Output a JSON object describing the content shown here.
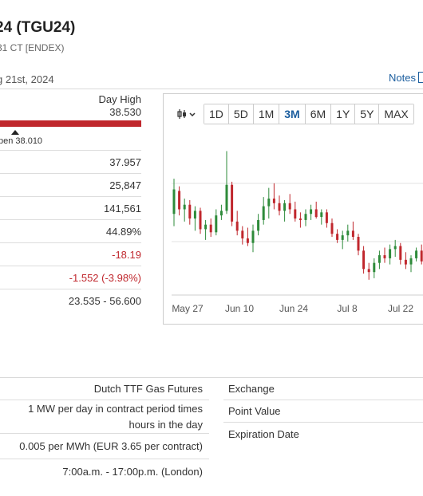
{
  "header": {
    "title": "24 (TGU24)",
    "subtitle": "31 CT [ENDEX)",
    "date": "g 21st, 2024",
    "notes_label": "Notes"
  },
  "day_range": {
    "high_label": "Day High",
    "high_value": "38.530",
    "open_label": "pen 38.010"
  },
  "stats": [
    {
      "value": "37.957",
      "negative": false
    },
    {
      "value": "25,847",
      "negative": false
    },
    {
      "value": "141,561",
      "negative": false
    },
    {
      "value": "44.89%",
      "negative": false
    },
    {
      "value": "-18.19",
      "negative": true
    },
    {
      "value": "-1.552 (-3.98%)",
      "negative": true
    },
    {
      "value": "23.535 - 56.600",
      "negative": false
    }
  ],
  "chart": {
    "type_icon": "candlestick-icon",
    "periods": [
      "1D",
      "5D",
      "1M",
      "3M",
      "6M",
      "1Y",
      "5Y",
      "MAX"
    ],
    "active_period": "3M",
    "x_labels": [
      "May 27",
      "Jun 10",
      "Jun 24",
      "Jul 8",
      "Jul 22"
    ],
    "colors": {
      "up": "#2e8b3a",
      "down": "#c0272d",
      "grid": "#e3e3e3"
    }
  },
  "chart_data": {
    "type": "candlestick",
    "title": "",
    "xlabel": "",
    "ylabel": "",
    "categories": [
      "May 27",
      "Jun 10",
      "Jun 24",
      "Jul 8",
      "Jul 22"
    ],
    "ylim": [
      30,
      40
    ],
    "series": [
      {
        "ohlc": [
          [
            35.3,
            37.6,
            34.5,
            36.9
          ],
          [
            36.8,
            37.1,
            35.2,
            35.6
          ],
          [
            35.6,
            36.3,
            34.8,
            35.9
          ],
          [
            35.9,
            36.2,
            34.6,
            35.0
          ],
          [
            35.0,
            35.8,
            34.2,
            35.5
          ],
          [
            35.5,
            35.7,
            34.0,
            34.3
          ],
          [
            34.3,
            34.9,
            33.6,
            34.6
          ],
          [
            34.6,
            35.0,
            33.8,
            34.1
          ],
          [
            34.1,
            35.6,
            33.9,
            35.2
          ],
          [
            35.2,
            35.9,
            34.9,
            35.5
          ],
          [
            35.5,
            39.4,
            35.3,
            37.2
          ],
          [
            37.2,
            37.4,
            34.5,
            34.8
          ],
          [
            34.8,
            35.5,
            33.9,
            34.2
          ],
          [
            34.2,
            34.5,
            33.3,
            33.7
          ],
          [
            33.7,
            34.4,
            33.2,
            33.4
          ],
          [
            33.4,
            34.6,
            32.8,
            34.2
          ],
          [
            34.2,
            35.3,
            33.9,
            34.9
          ],
          [
            34.9,
            36.4,
            34.6,
            35.8
          ],
          [
            35.8,
            37.0,
            35.0,
            36.3
          ],
          [
            36.3,
            37.3,
            35.6,
            36.0
          ],
          [
            36.0,
            36.5,
            35.2,
            35.5
          ],
          [
            35.5,
            36.2,
            34.8,
            36.0
          ],
          [
            36.0,
            36.6,
            35.3,
            35.6
          ],
          [
            35.6,
            36.1,
            34.8,
            35.0
          ],
          [
            35.0,
            35.4,
            34.4,
            34.9
          ],
          [
            34.9,
            35.6,
            34.5,
            35.3
          ],
          [
            35.3,
            35.9,
            34.9,
            35.6
          ],
          [
            35.6,
            36.1,
            35.0,
            35.1
          ],
          [
            35.1,
            35.6,
            34.6,
            35.4
          ],
          [
            35.4,
            35.6,
            34.4,
            34.7
          ],
          [
            34.7,
            35.0,
            33.8,
            34.0
          ],
          [
            34.0,
            34.3,
            33.4,
            33.6
          ],
          [
            33.6,
            34.2,
            33.0,
            33.9
          ],
          [
            33.9,
            34.6,
            33.5,
            34.2
          ],
          [
            34.2,
            34.8,
            33.6,
            33.8
          ],
          [
            33.8,
            34.0,
            32.6,
            32.9
          ],
          [
            32.9,
            33.2,
            31.4,
            31.7
          ],
          [
            31.7,
            32.1,
            31.0,
            31.5
          ],
          [
            31.5,
            32.4,
            31.1,
            32.1
          ],
          [
            32.1,
            32.9,
            31.7,
            32.6
          ],
          [
            32.6,
            33.1,
            32.1,
            32.4
          ],
          [
            32.4,
            33.3,
            32.0,
            33.0
          ],
          [
            33.0,
            33.6,
            32.5,
            33.2
          ],
          [
            33.2,
            33.4,
            32.0,
            32.3
          ],
          [
            32.3,
            32.8,
            31.7,
            32.0
          ],
          [
            32.0,
            32.6,
            31.5,
            32.4
          ],
          [
            32.4,
            33.1,
            32.2,
            32.9
          ],
          [
            32.9,
            33.3,
            32.0,
            32.2
          ]
        ]
      }
    ]
  },
  "specs_left": [
    "Dutch TTF Gas Futures",
    "1 MW per day in contract period times hours in the day",
    "0.005 per MWh (EUR 3.65 per contract)",
    "7:00a.m. - 17:00p.m. (London)"
  ],
  "specs_right": [
    "Exchange",
    "Point Value",
    "Expiration Date"
  ]
}
